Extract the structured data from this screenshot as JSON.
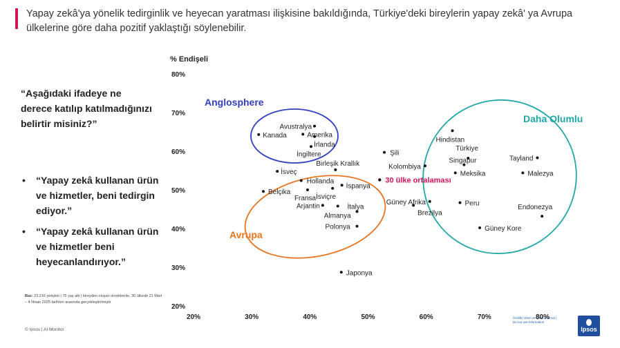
{
  "headline": "Yapay zekâ'ya yönelik tedirginlik ve heyecan yaratması ilişkisine bakıldığında, Türkiye'deki bireylerin yapay zekâ' ya Avrupa ülkelerine göre daha pozitif yaklaştığı söylenebilir.",
  "question": "“Aşağıdaki ifadeye ne derece katılıp katılmadığınızı belirtir misiniz?”",
  "bullets": [
    "“Yapay zekâ kullanan ürün ve hizmetler, beni tedirgin ediyor.”",
    "“Yapay zekâ kullanan ürün ve hizmetler beni heyecanlandırıyor.”"
  ],
  "base_note_bold": "Baz:",
  "base_note": "23.216 yetişkin | 75 yaş altı | bireyden oluşan örneklemle, 30 ülkede 21 Mart – 4 Nisan 2025 tarihleri arasında gerçekleştirilmiştir",
  "footer": "© Ipsos | AI Monitor",
  "tiny_right": "Gizlilik | Ekim ve Ipsos internal | Do not use information",
  "logo_text": "Ipsos",
  "colors": {
    "accent": "#d4145a",
    "anglosphere": "#2f3fbf",
    "avrupa": "#e8731c",
    "daha_olumlu": "#1fa7a6",
    "average": "#d4145a"
  },
  "chart_data": {
    "type": "scatter",
    "title": "",
    "xlabel": "",
    "ylabel": "% Endişeli",
    "xlim": [
      20,
      80
    ],
    "ylim": [
      20,
      80
    ],
    "x_ticks": [
      "20%",
      "30%",
      "40%",
      "50%",
      "60%",
      "70%",
      "80%"
    ],
    "y_ticks": [
      "20%",
      "30%",
      "40%",
      "50%",
      "60%",
      "70%",
      "80%"
    ],
    "grid": false,
    "points": [
      {
        "name": "Avustralya",
        "x": 40.8,
        "y": 66.5
      },
      {
        "name": "Kanada",
        "x": 31.2,
        "y": 64.3
      },
      {
        "name": "Amerika",
        "x": 38.8,
        "y": 64.4
      },
      {
        "name": "İrlanda",
        "x": 40.8,
        "y": 63.8
      },
      {
        "name": "İngiltere",
        "x": 40.2,
        "y": 61.2
      },
      {
        "name": "Birleşik Krallık",
        "x": 44.4,
        "y": 55.2
      },
      {
        "name": "İsveç",
        "x": 34.4,
        "y": 54.8
      },
      {
        "name": "Hollanda",
        "x": 38.5,
        "y": 52.4
      },
      {
        "name": "İspanya",
        "x": 45.5,
        "y": 51.2
      },
      {
        "name": "Belçika",
        "x": 32.0,
        "y": 49.6
      },
      {
        "name": "Fransa",
        "x": 39.6,
        "y": 50.0
      },
      {
        "name": "İsviçre",
        "x": 43.9,
        "y": 50.4
      },
      {
        "name": "Arjantin",
        "x": 42.2,
        "y": 46.0
      },
      {
        "name": "Almanya",
        "x": 44.8,
        "y": 45.8
      },
      {
        "name": "İtalya",
        "x": 48.1,
        "y": 44.4
      },
      {
        "name": "Polonya",
        "x": 48.1,
        "y": 40.6
      },
      {
        "name": "Japonya",
        "x": 45.4,
        "y": 28.7
      },
      {
        "name": "Şili",
        "x": 52.8,
        "y": 59.7
      },
      {
        "name": "Kolombiya",
        "x": 59.8,
        "y": 56.2
      },
      {
        "name": "Güney Afrika",
        "x": 60.6,
        "y": 47.0
      },
      {
        "name": "Brezilya",
        "x": 57.8,
        "y": 46.0
      },
      {
        "name": "Hindistan",
        "x": 64.5,
        "y": 65.3
      },
      {
        "name": "Türkiye",
        "x": 67.2,
        "y": 58.2
      },
      {
        "name": "Singapur",
        "x": 66.5,
        "y": 56.5
      },
      {
        "name": "Meksika",
        "x": 65.0,
        "y": 54.4
      },
      {
        "name": "Tayland",
        "x": 79.1,
        "y": 58.3
      },
      {
        "name": "Malezya",
        "x": 76.6,
        "y": 54.4
      },
      {
        "name": "Peru",
        "x": 65.8,
        "y": 46.7
      },
      {
        "name": "Endonezya",
        "x": 79.9,
        "y": 43.2
      },
      {
        "name": "Güney Kore",
        "x": 69.2,
        "y": 40.2
      }
    ],
    "average": {
      "name": "30 ülke ortalaması",
      "x": 52.0,
      "y": 52.6
    },
    "groups": [
      {
        "name": "Anglosphere",
        "color": "#2f3fbf"
      },
      {
        "name": "Avrupa",
        "color": "#e8731c"
      },
      {
        "name": "Daha Olumlu",
        "color": "#1fa7a6"
      }
    ]
  }
}
